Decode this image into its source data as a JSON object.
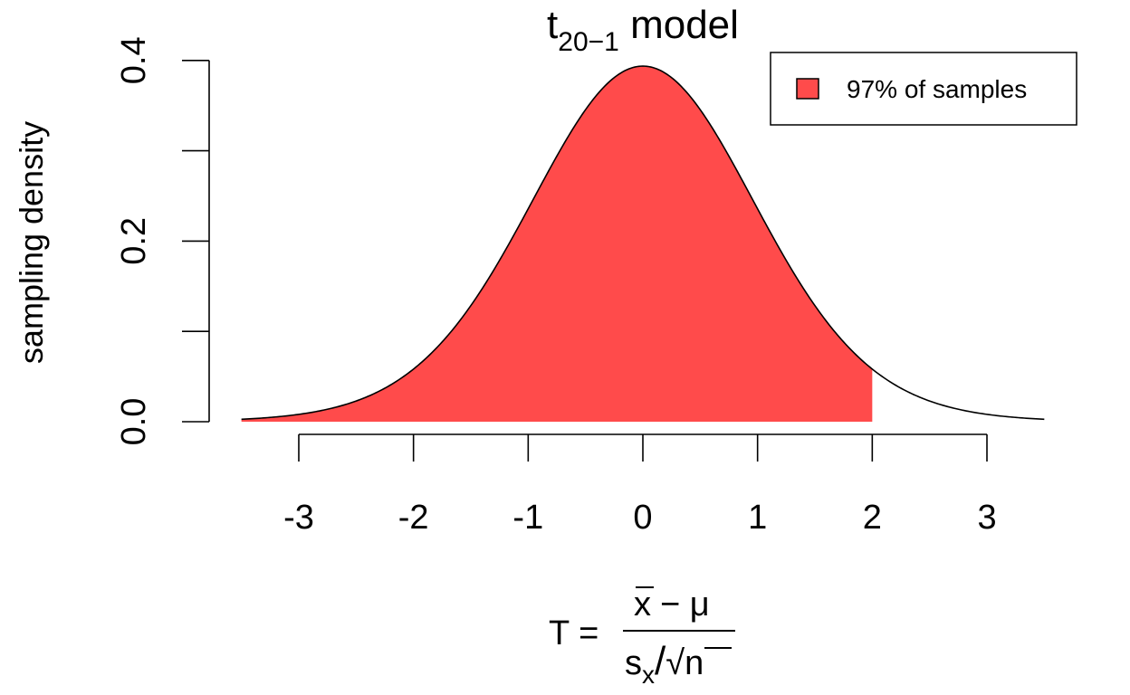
{
  "chart_data": {
    "type": "area",
    "distribution": "t",
    "df": 19,
    "title": {
      "main": "t",
      "subscript": "20−1",
      "suffix": " model"
    },
    "xlabel": {
      "lhs": "T =",
      "numerator_xbar": "x",
      "numerator_rest": "− μ",
      "denominator_s": "s",
      "denominator_sub": "x",
      "denominator_slash": "/",
      "denominator_root": "√",
      "denominator_n": "n"
    },
    "ylabel": "sampling density",
    "x_range": [
      -3.5,
      3.5
    ],
    "xlim": [
      -3.5,
      3.5
    ],
    "ylim": [
      0,
      0.4
    ],
    "x_ticks": [
      -3,
      -2,
      -1,
      0,
      1,
      2,
      3
    ],
    "x_tick_labels": [
      "-3",
      "-2",
      "-1",
      "0",
      "1",
      "2",
      "3"
    ],
    "y_ticks": [
      0,
      0.1,
      0.2,
      0.3,
      0.4
    ],
    "y_tick_labels": [
      "0.0",
      "",
      "0.2",
      "",
      "0.4"
    ],
    "shaded_region": {
      "from": -3.5,
      "to": 2.0,
      "color": "#ff4b4b"
    },
    "legend": {
      "position": "top-right",
      "entries": [
        {
          "label": "97% of samples",
          "color": "#ff4b4b"
        }
      ]
    },
    "grid": false
  }
}
